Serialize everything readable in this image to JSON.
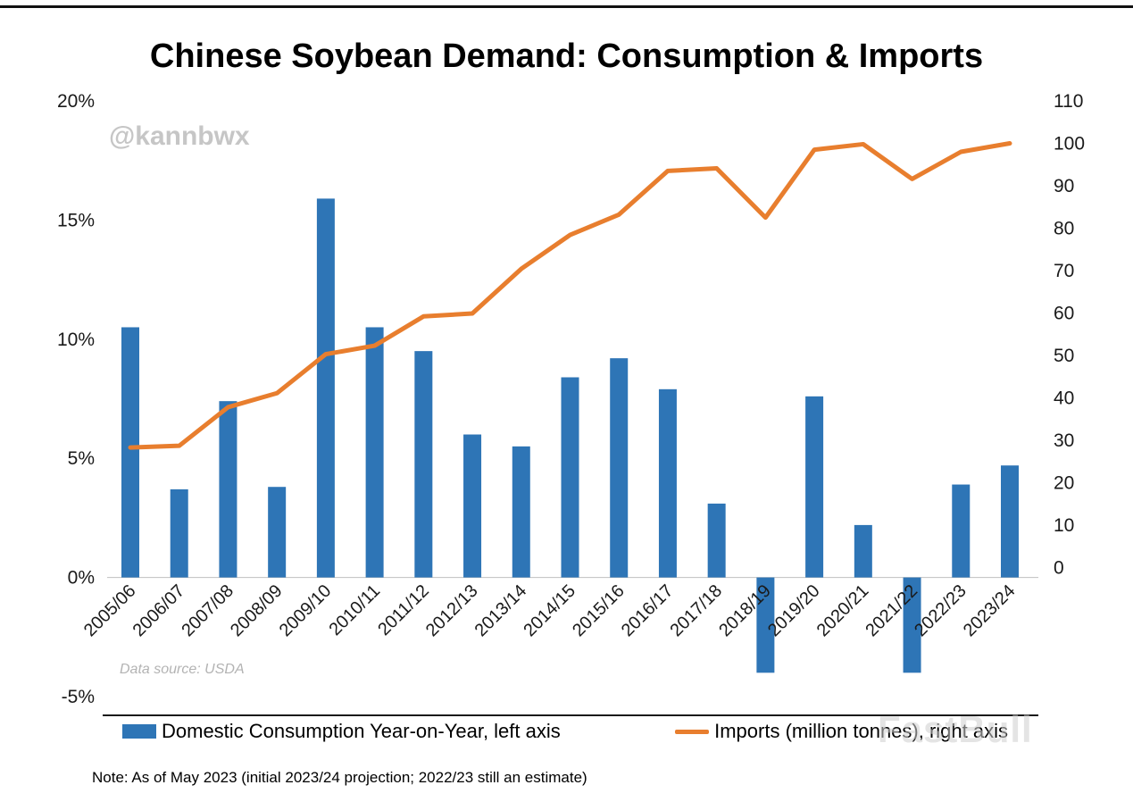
{
  "chart_data": {
    "type": "bar+line",
    "title": "Chinese Soybean Demand: Consumption & Imports",
    "categories": [
      "2005/06",
      "2006/07",
      "2007/08",
      "2008/09",
      "2009/10",
      "2010/11",
      "2011/12",
      "2012/13",
      "2013/14",
      "2014/15",
      "2015/16",
      "2016/17",
      "2017/18",
      "2018/19",
      "2019/20",
      "2020/21",
      "2021/22",
      "2022/23",
      "2023/24"
    ],
    "series": [
      {
        "name": "Domestic Consumption Year-on-Year, left axis",
        "type": "bar",
        "axis": "left",
        "unit": "%",
        "values": [
          10.5,
          3.7,
          7.4,
          3.8,
          15.9,
          10.5,
          9.5,
          6.0,
          5.5,
          8.4,
          9.2,
          7.9,
          3.1,
          -4.0,
          7.6,
          2.2,
          -4.0,
          3.9,
          4.7
        ]
      },
      {
        "name": "Imports (million tonnes), right axis",
        "type": "line",
        "axis": "right",
        "unit": "million tonnes",
        "values": [
          28.3,
          28.7,
          37.8,
          41.1,
          50.3,
          52.3,
          59.2,
          59.9,
          70.4,
          78.4,
          83.2,
          93.5,
          94.1,
          82.5,
          98.5,
          99.8,
          91.6,
          98.0,
          100.0
        ]
      }
    ],
    "left_axis": {
      "min": -5,
      "max": 20,
      "tick_values": [
        20,
        15,
        10,
        5,
        0,
        -5
      ],
      "tick_labels": [
        "20%",
        "15%",
        "10%",
        "5%",
        "0%",
        "-5%"
      ]
    },
    "right_axis": {
      "min": 0,
      "max": 110,
      "tick_values": [
        110,
        100,
        90,
        80,
        70,
        60,
        50,
        40,
        30,
        20,
        10,
        0
      ],
      "tick_labels": [
        "110",
        "100",
        "90",
        "80",
        "70",
        "60",
        "50",
        "40",
        "30",
        "20",
        "10",
        "0"
      ]
    },
    "legend_position": "bottom",
    "grid": false
  },
  "watermark": "@kannbwx",
  "brand_watermark": "FastBull",
  "data_source": "Data source: USDA",
  "note": "Note: As of May 2023 (initial 2023/24 projection; 2022/23 still an estimate)",
  "colors": {
    "bar": "#2E75B6",
    "line": "#E87E2E",
    "axis_text": "#1a1a1a",
    "handle_watermark": "#C6C6C6",
    "brand_watermark_color": "#CFCFCF"
  }
}
